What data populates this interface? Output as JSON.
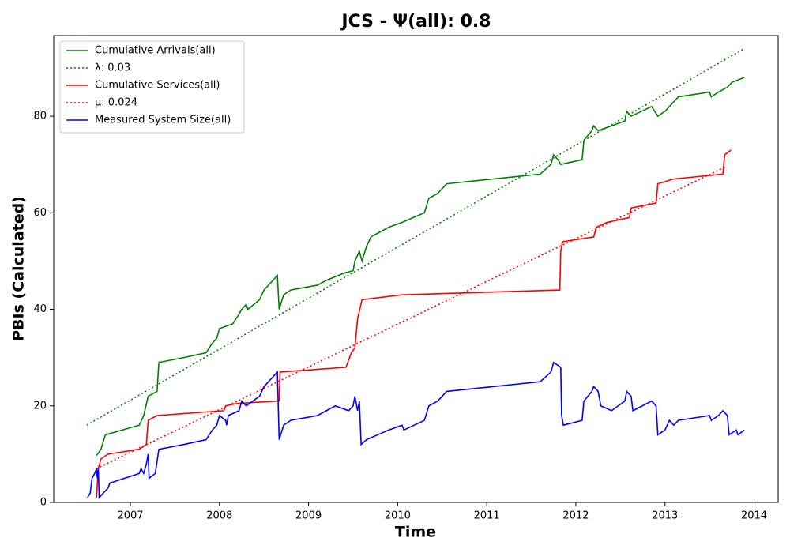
{
  "chart_data": {
    "type": "line",
    "title": "JCS -  Ψ(all): 0.8",
    "xlabel": "Time",
    "ylabel": "PBIs (Calculated)",
    "xlim": [
      2006.14,
      2014.27
    ],
    "ylim": [
      0,
      96.7
    ],
    "xticks": [
      2007,
      2008,
      2009,
      2010,
      2011,
      2012,
      2013,
      2014
    ],
    "yticks": [
      0,
      20,
      40,
      60,
      80
    ],
    "grid": false,
    "legend": "upper left",
    "series": [
      {
        "name": "Cumulative Arrivals(all)",
        "color": "#008000",
        "linestyle": "solid",
        "x": [
          2006.62,
          2006.67,
          2006.72,
          2007.1,
          2007.15,
          2007.2,
          2007.3,
          2007.32,
          2007.6,
          2007.85,
          2007.92,
          2007.97,
          2008.0,
          2008.15,
          2008.22,
          2008.25,
          2008.3,
          2008.32,
          2008.45,
          2008.5,
          2008.6,
          2008.65,
          2008.67,
          2008.72,
          2008.8,
          2009.1,
          2009.2,
          2009.4,
          2009.5,
          2009.52,
          2009.57,
          2009.6,
          2009.65,
          2009.7,
          2009.9,
          2010.05,
          2010.3,
          2010.35,
          2010.45,
          2010.55,
          2011.6,
          2011.72,
          2011.75,
          2011.8,
          2011.83,
          2012.07,
          2012.09,
          2012.18,
          2012.2,
          2012.25,
          2012.55,
          2012.57,
          2012.62,
          2012.85,
          2012.92,
          2013.0,
          2013.05,
          2013.15,
          2013.5,
          2013.52,
          2013.6,
          2013.7,
          2013.75,
          2013.89
        ],
        "values": [
          9.7,
          11,
          14,
          16,
          18,
          22,
          23,
          29,
          30,
          31,
          33,
          34,
          36,
          37,
          39,
          40,
          41,
          40,
          42,
          44,
          46,
          47,
          40,
          43,
          44,
          45,
          46,
          47.5,
          48,
          50,
          52,
          50,
          53,
          55,
          57,
          58,
          60,
          63,
          64,
          66,
          68,
          70,
          72,
          71,
          70,
          71,
          75,
          77,
          78,
          77,
          79,
          81,
          80,
          82,
          80,
          81,
          82,
          84,
          85,
          84,
          85,
          86,
          87,
          88
        ]
      },
      {
        "name": "λ: 0.03",
        "color": "#008000",
        "linestyle": "dotted",
        "x": [
          2006.51,
          2013.89
        ],
        "values": [
          16,
          94
        ]
      },
      {
        "name": "Cumulative Services(all)",
        "color": "#ff0000",
        "linestyle": "solid",
        "x": [
          2006.62,
          2006.64,
          2006.67,
          2006.75,
          2007.1,
          2007.18,
          2007.2,
          2007.3,
          2008.05,
          2008.07,
          2008.2,
          2008.67,
          2008.68,
          2009.42,
          2009.48,
          2009.52,
          2009.55,
          2009.6,
          2010.05,
          2011.82,
          2011.83,
          2011.85,
          2012.2,
          2012.23,
          2012.35,
          2012.6,
          2012.62,
          2012.9,
          2012.92,
          2013.1,
          2013.65,
          2013.67,
          2013.74
        ],
        "values": [
          1,
          7,
          9,
          10,
          11,
          12,
          17,
          18,
          19,
          20,
          20.5,
          21,
          27,
          28,
          31,
          32,
          38,
          42,
          43,
          44,
          52,
          54,
          55,
          57,
          58,
          59,
          61,
          62,
          66,
          67,
          68,
          72,
          73
        ]
      },
      {
        "name": "μ: 0.024",
        "color": "#ff0000",
        "linestyle": "dotted",
        "x": [
          2006.62,
          2013.68
        ],
        "values": [
          7,
          69.5
        ]
      },
      {
        "name": "Measured System Size(all)",
        "color": "#0000ff",
        "linestyle": "solid",
        "x": [
          2006.52,
          2006.55,
          2006.57,
          2006.6,
          2006.62,
          2006.63,
          2006.64,
          2006.65,
          2006.7,
          2006.75,
          2006.77,
          2007.1,
          2007.12,
          2007.15,
          2007.18,
          2007.2,
          2007.21,
          2007.28,
          2007.32,
          2007.6,
          2007.85,
          2007.92,
          2007.97,
          2008.0,
          2008.07,
          2008.08,
          2008.1,
          2008.22,
          2008.25,
          2008.3,
          2008.45,
          2008.5,
          2008.65,
          2008.67,
          2008.72,
          2008.8,
          2009.1,
          2009.2,
          2009.3,
          2009.45,
          2009.5,
          2009.52,
          2009.55,
          2009.57,
          2009.59,
          2009.65,
          2009.9,
          2010.05,
          2010.07,
          2010.3,
          2010.35,
          2010.45,
          2010.55,
          2011.6,
          2011.72,
          2011.75,
          2011.83,
          2011.84,
          2011.86,
          2012.07,
          2012.09,
          2012.18,
          2012.2,
          2012.25,
          2012.28,
          2012.4,
          2012.55,
          2012.57,
          2012.62,
          2012.64,
          2012.85,
          2012.9,
          2012.92,
          2013.0,
          2013.05,
          2013.1,
          2013.15,
          2013.5,
          2013.52,
          2013.6,
          2013.65,
          2013.7,
          2013.72,
          2013.8,
          2013.82,
          2013.89
        ],
        "values": [
          1,
          2,
          5,
          6,
          7,
          5,
          7,
          1,
          2,
          3,
          4,
          6,
          7,
          6,
          8,
          10,
          5,
          6,
          11,
          12,
          13,
          15,
          16,
          18,
          17,
          16,
          18,
          19,
          21,
          20,
          22,
          24,
          27,
          13,
          16,
          17,
          18,
          19,
          20,
          19,
          20,
          22,
          19,
          21,
          12,
          13,
          15,
          16,
          15,
          17,
          20,
          21,
          23,
          25,
          27,
          29,
          28,
          18,
          16,
          17,
          21,
          23,
          24,
          23,
          20,
          19,
          21,
          23,
          22,
          19,
          21,
          20,
          14,
          15,
          17,
          16,
          17,
          18,
          17,
          18,
          19,
          18,
          14,
          15,
          14,
          15
        ]
      }
    ]
  }
}
